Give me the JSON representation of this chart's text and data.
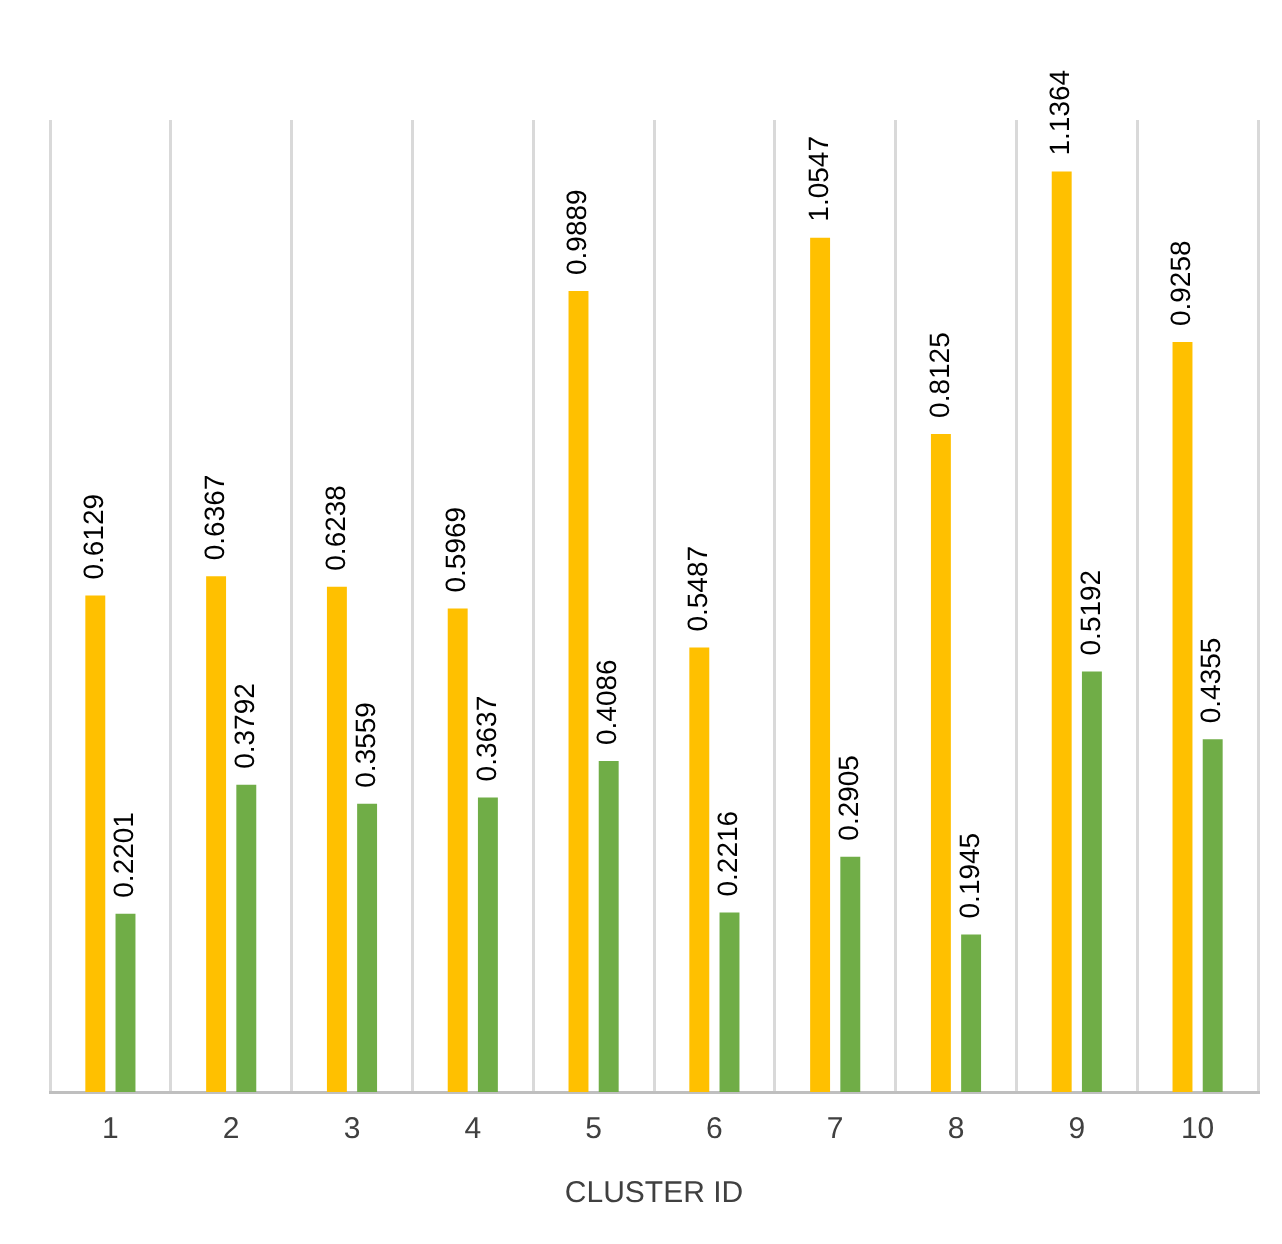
{
  "chart_data": {
    "type": "bar",
    "xlabel": "CLUSTER ID",
    "categories": [
      "1",
      "2",
      "3",
      "4",
      "5",
      "6",
      "7",
      "8",
      "9",
      "10"
    ],
    "series": [
      {
        "color": "#ffc000",
        "values": [
          0.6129,
          0.6367,
          0.6238,
          0.5969,
          0.9889,
          0.5487,
          1.0547,
          0.8125,
          1.1364,
          0.9258
        ]
      },
      {
        "color": "#70ad47",
        "values": [
          0.2201,
          0.3792,
          0.3559,
          0.3637,
          0.4086,
          0.2216,
          0.2905,
          0.1945,
          0.5192,
          0.4355
        ]
      }
    ],
    "ylim": [
      0,
      1.2
    ],
    "grid": "x",
    "legend": false,
    "data_labels": true,
    "tick_labels": "x"
  }
}
